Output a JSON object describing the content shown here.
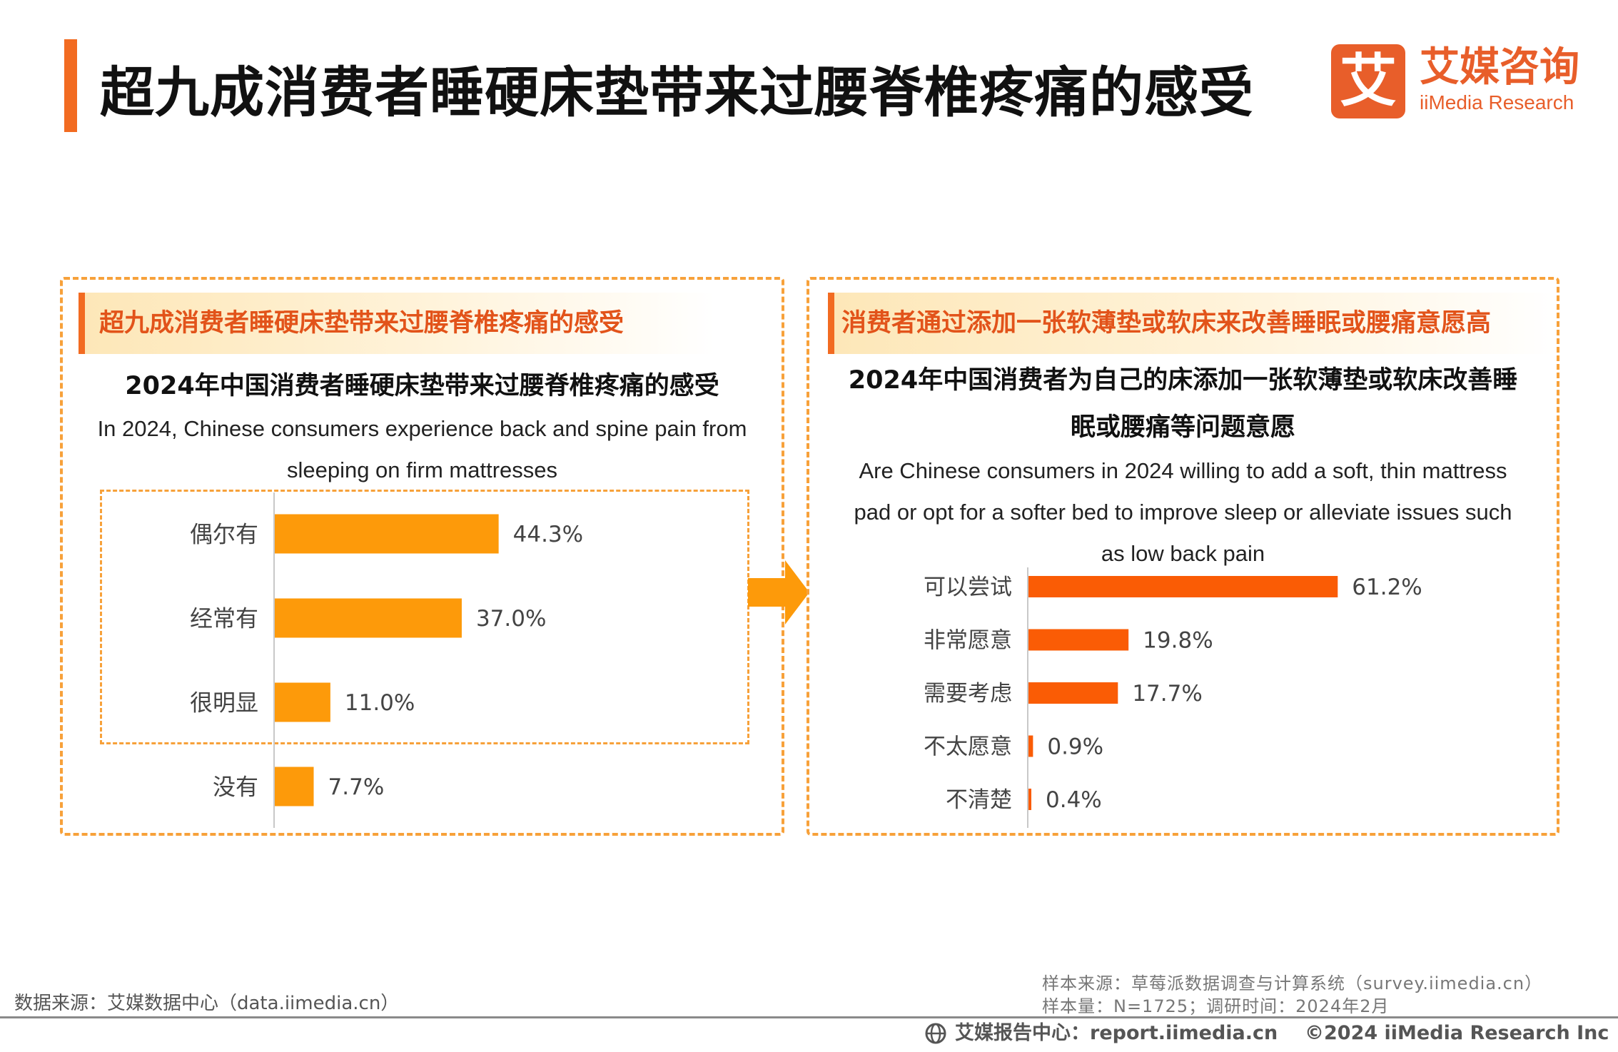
{
  "header": {
    "title": "超九成消费者睡硬床垫带来过腰脊椎疼痛的感受",
    "logo_mark": "艾",
    "logo_cn": "艾媒咨询",
    "logo_en": "iiMedia Research"
  },
  "left_panel": {
    "banner": "超九成消费者睡硬床垫带来过腰脊椎疼痛的感受",
    "subtitle_cn": "2024年中国消费者睡硬床垫带来过腰脊椎疼痛的感受",
    "subtitle_en_1": "In 2024, Chinese consumers experience back and spine pain from",
    "subtitle_en_2": "sleeping on firm mattresses"
  },
  "right_panel": {
    "banner": "消费者通过添加一张软薄垫或软床来改善睡眠或腰痛意愿高",
    "subtitle_cn_1": "2024年中国消费者为自己的床添加一张软薄垫或软床改善睡",
    "subtitle_cn_2": "眠或腰痛等问题意愿",
    "subtitle_en_1": "Are Chinese consumers in 2024 willing to add a soft, thin mattress",
    "subtitle_en_2": "pad or opt for a softer bed to improve sleep or alleviate issues such",
    "subtitle_en_3": "as low back pain"
  },
  "chart_data": [
    {
      "type": "bar",
      "orientation": "horizontal",
      "title": "2024年中国消费者睡硬床垫带来过腰脊椎疼痛的感受",
      "categories": [
        "偶尔有",
        "经常有",
        "很明显",
        "没有"
      ],
      "values": [
        44.3,
        37.0,
        11.0,
        7.7
      ],
      "labels": [
        "44.3%",
        "37.0%",
        "11.0%",
        "7.7%"
      ],
      "unit": "%",
      "color": "#fd9a0a"
    },
    {
      "type": "bar",
      "orientation": "horizontal",
      "title": "2024年中国消费者为自己的床添加一张软薄垫或软床改善睡眠或腰痛等问题意愿",
      "categories": [
        "可以尝试",
        "非常愿意",
        "需要考虑",
        "不太愿意",
        "不清楚"
      ],
      "values": [
        61.2,
        19.8,
        17.7,
        0.9,
        0.4
      ],
      "labels": [
        "61.2%",
        "19.8%",
        "17.7%",
        "0.9%",
        "0.4%"
      ],
      "unit": "%",
      "color": "#fa5c05"
    }
  ],
  "sources": {
    "left": "数据来源：艾媒数据中心（data.iimedia.cn）",
    "right_1": "样本来源：草莓派数据调查与计算系统（survey.iimedia.cn）",
    "right_2": "样本量：N=1725；调研时间：2024年2月"
  },
  "footer": {
    "center": "艾媒报告中心：report.iimedia.cn",
    "right": "©2024  iiMedia Research  Inc"
  }
}
